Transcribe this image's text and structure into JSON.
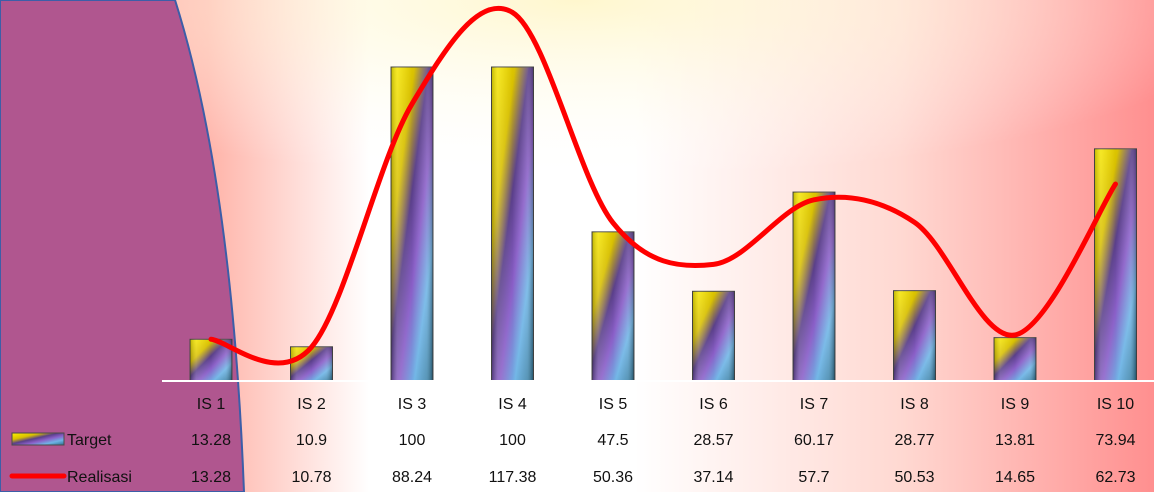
{
  "chart_data": {
    "type": "bar",
    "categories": [
      "IS 1",
      "IS 2",
      "IS 3",
      "IS 4",
      "IS 5",
      "IS 6",
      "IS 7",
      "IS 8",
      "IS 9",
      "IS 10"
    ],
    "ylim": [
      0,
      100
    ],
    "grid": false,
    "legend_placement": "bottom-left data table",
    "series": [
      {
        "name": "Target",
        "type": "bar",
        "values": [
          13.28,
          10.9,
          100,
          100,
          47.5,
          28.57,
          60.17,
          28.77,
          13.81,
          73.94
        ],
        "labels": [
          "13.28",
          "10.9",
          "100",
          "100",
          "47.5",
          "28.57",
          "60.17",
          "28.77",
          "13.81",
          "73.94"
        ],
        "color": "#f2e600"
      },
      {
        "name": "Realisasi",
        "type": "line",
        "values": [
          13.28,
          10.78,
          88.24,
          117.38,
          50.36,
          37.14,
          57.7,
          50.53,
          14.65,
          62.73
        ],
        "labels": [
          "13.28",
          "10.78",
          "88.24",
          "117.38",
          "50.36",
          "37.14",
          "57.7",
          "50.53",
          "14.65",
          "62.73"
        ],
        "color": "#ff0000"
      }
    ]
  }
}
